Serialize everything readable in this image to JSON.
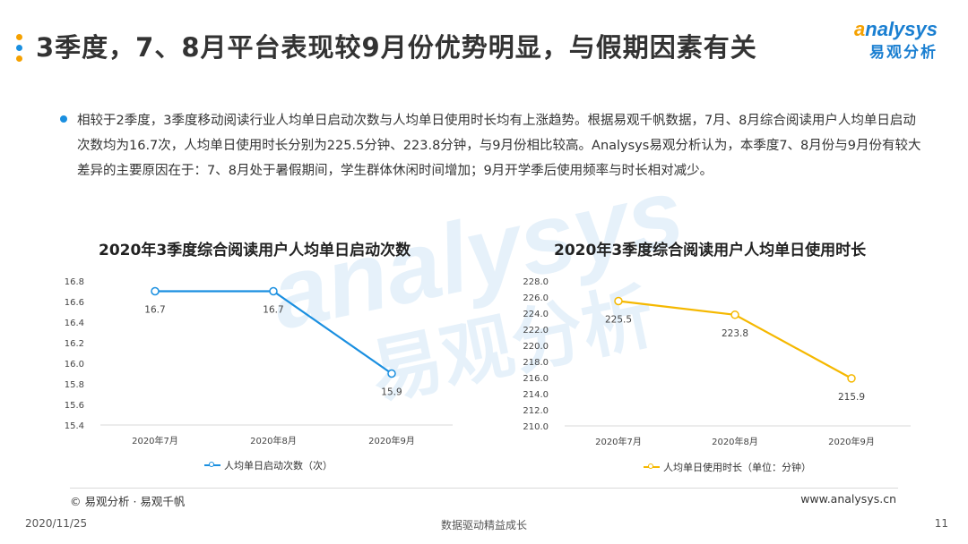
{
  "header": {
    "title": "3季度，7、8月平台表现较9月份优势明显，与假期因素有关",
    "dot_colors": [
      "#f5a100",
      "#1a8fe0",
      "#f5a100"
    ]
  },
  "logo": {
    "en_first": "a",
    "en_rest": "nalysys",
    "cn": "易观分析"
  },
  "watermark": {
    "en": "analysys",
    "cn": "易观分析"
  },
  "bullet": {
    "text": "相较于2季度，3季度移动阅读行业人均单日启动次数与人均单日使用时长均有上涨趋势。根据易观千帆数据，7月、8月综合阅读用户人均单日启动次数均为16.7次，人均单日使用时长分别为225.5分钟、223.8分钟，与9月份相比较高。Analysys易观分析认为，本季度7、8月份与9月份有较大差异的主要原因在于：7、8月处于暑假期间，学生群体休闲时间增加；9月开学季后使用频率与时长相对减少。"
  },
  "chart_data": [
    {
      "type": "line",
      "title": "2020年3季度综合阅读用户人均单日启动次数",
      "categories": [
        "2020年7月",
        "2020年8月",
        "2020年9月"
      ],
      "series": [
        {
          "name": "人均单日启动次数（次）",
          "values": [
            16.7,
            16.7,
            15.9
          ],
          "color": "#1a8fe0"
        }
      ],
      "ylim": [
        15.4,
        16.8
      ],
      "yticks": [
        "15.4",
        "15.6",
        "15.8",
        "16.0",
        "16.2",
        "16.4",
        "16.6",
        "16.8"
      ],
      "data_labels": [
        "16.7",
        "16.7",
        "15.9"
      ],
      "legend": "bottom",
      "grid": false
    },
    {
      "type": "line",
      "title": "2020年3季度综合阅读用户人均单日使用时长",
      "categories": [
        "2020年7月",
        "2020年8月",
        "2020年9月"
      ],
      "series": [
        {
          "name": "人均单日使用时长（单位：分钟）",
          "values": [
            225.5,
            223.8,
            215.9
          ],
          "color": "#f5b800"
        }
      ],
      "ylim": [
        210.0,
        228.0
      ],
      "yticks": [
        "210.0",
        "212.0",
        "214.0",
        "216.0",
        "218.0",
        "220.0",
        "222.0",
        "224.0",
        "226.0",
        "228.0"
      ],
      "data_labels": [
        "225.5",
        "223.8",
        "215.9"
      ],
      "legend": "bottom",
      "grid": false
    }
  ],
  "footer": {
    "source": "© 易观分析 · 易观千帆",
    "site": "www.analysys.cn",
    "date": "2020/11/25",
    "slogan": "数据驱动精益成长",
    "page": "11"
  }
}
